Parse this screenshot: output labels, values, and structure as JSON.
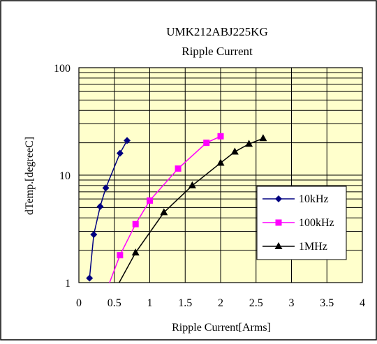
{
  "chart_data": {
    "type": "line",
    "title": "UMK212ABJ225KG",
    "subtitle": "Ripple Current",
    "xlabel": "Ripple Current[Arms]",
    "ylabel": "dTemp.[degreeC]",
    "xlim": [
      0,
      4
    ],
    "ylim": [
      1,
      100
    ],
    "yscale": "log",
    "x_ticks": [
      "0",
      "0.5",
      "1",
      "1.5",
      "2",
      "2.5",
      "3",
      "3.5",
      "4"
    ],
    "y_ticks": [
      "1",
      "10",
      "100"
    ],
    "grid": true,
    "plot_background": "#ffffcc",
    "legend_position": "lower-right",
    "series": [
      {
        "name": "10kHz",
        "color": "#000080",
        "marker": "diamond",
        "x": [
          0.15,
          0.21,
          0.3,
          0.38,
          0.58,
          0.68
        ],
        "y": [
          1.1,
          2.8,
          5.1,
          7.6,
          16,
          21
        ]
      },
      {
        "name": "100kHz",
        "color": "#ff00ff",
        "marker": "square",
        "x": [
          0.42,
          0.58,
          0.8,
          1.0,
          1.4,
          1.8,
          2.0
        ],
        "y": [
          0.95,
          1.8,
          3.5,
          5.8,
          11.5,
          20,
          23
        ]
      },
      {
        "name": "1MHz",
        "color": "#000000",
        "marker": "triangle",
        "x": [
          0.55,
          0.8,
          1.2,
          1.6,
          2.0,
          2.2,
          2.4,
          2.6
        ],
        "y": [
          0.95,
          1.9,
          4.5,
          8,
          13,
          16.5,
          19.5,
          22
        ]
      }
    ]
  }
}
